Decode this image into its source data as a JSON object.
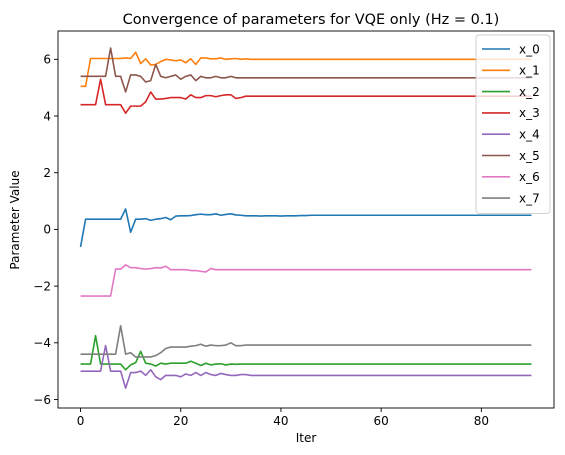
{
  "chart_data": {
    "type": "line",
    "title": "Convergence of parameters for VQE only (Hz = 0.1)",
    "xlabel": "Iter",
    "ylabel": "Parameter Value",
    "xlim": [
      -4.5,
      94.5
    ],
    "ylim": [
      -6.3,
      7.0
    ],
    "xticks": [
      0,
      20,
      40,
      60,
      80
    ],
    "yticks": [
      -6,
      -4,
      -2,
      0,
      2,
      4,
      6
    ],
    "grid": false,
    "legend_position": "top-right",
    "x": [
      0,
      1,
      2,
      3,
      4,
      5,
      6,
      7,
      8,
      9,
      10,
      11,
      12,
      13,
      14,
      15,
      16,
      17,
      18,
      19,
      20,
      21,
      22,
      23,
      24,
      25,
      26,
      27,
      28,
      29,
      30,
      31,
      32,
      33,
      34,
      35,
      36,
      37,
      38,
      39,
      40,
      41,
      42,
      43,
      44,
      45,
      46,
      47,
      48,
      49,
      50,
      51,
      52,
      53,
      54,
      55,
      56,
      57,
      58,
      59,
      60,
      61,
      62,
      63,
      64,
      65,
      66,
      67,
      68,
      69,
      70,
      71,
      72,
      73,
      74,
      75,
      76,
      77,
      78,
      79,
      80,
      81,
      82,
      83,
      84,
      85,
      86,
      87,
      88,
      89,
      90
    ],
    "series": [
      {
        "name": "x_0",
        "color": "#1f77b4",
        "values": [
          -0.62,
          0.36,
          0.36,
          0.36,
          0.36,
          0.36,
          0.36,
          0.36,
          0.36,
          0.72,
          -0.1,
          0.36,
          0.36,
          0.38,
          0.32,
          0.36,
          0.38,
          0.42,
          0.34,
          0.47,
          0.48,
          0.48,
          0.49,
          0.52,
          0.54,
          0.52,
          0.52,
          0.55,
          0.5,
          0.53,
          0.55,
          0.51,
          0.5,
          0.48,
          0.48,
          0.48,
          0.47,
          0.48,
          0.48,
          0.48,
          0.47,
          0.48,
          0.48,
          0.48,
          0.49,
          0.49,
          0.5,
          0.5,
          0.5,
          0.5,
          0.5,
          0.5,
          0.5,
          0.5,
          0.5,
          0.5,
          0.5,
          0.5,
          0.5,
          0.5,
          0.5,
          0.5,
          0.5,
          0.5,
          0.5,
          0.5,
          0.5,
          0.5,
          0.5,
          0.5,
          0.5,
          0.5,
          0.5,
          0.5,
          0.5,
          0.5,
          0.5,
          0.5,
          0.5,
          0.5,
          0.5,
          0.5,
          0.5,
          0.5,
          0.5,
          0.5,
          0.5,
          0.5,
          0.5,
          0.5,
          0.5
        ]
      },
      {
        "name": "x_1",
        "color": "#ff7f0e",
        "values": [
          5.05,
          5.05,
          6.03,
          6.03,
          6.03,
          6.03,
          6.03,
          6.03,
          6.03,
          6.05,
          6.03,
          6.25,
          5.85,
          6.02,
          5.8,
          5.82,
          5.92,
          6.0,
          5.98,
          5.95,
          5.98,
          5.88,
          6.02,
          5.82,
          6.05,
          6.05,
          6.02,
          6.02,
          6.05,
          6.0,
          6.02,
          6.03,
          6.0,
          6.02,
          6.0,
          6.0,
          6.0,
          6.0,
          6.0,
          6.0,
          6.0,
          6.0,
          6.0,
          6.0,
          6.0,
          6.0,
          6.0,
          6.0,
          6.0,
          6.0,
          6.0,
          6.0,
          6.0,
          6.0,
          6.0,
          6.0,
          6.0,
          6.0,
          6.0,
          6.0,
          6.0,
          6.0,
          6.0,
          6.0,
          6.0,
          6.0,
          6.0,
          6.0,
          6.0,
          6.0,
          6.0,
          6.0,
          6.0,
          6.0,
          6.0,
          6.0,
          6.0,
          6.0,
          6.0,
          6.0,
          6.0,
          6.0,
          6.0,
          6.0,
          6.0,
          6.0,
          6.0,
          6.0,
          6.0,
          6.0,
          6.0
        ]
      },
      {
        "name": "x_2",
        "color": "#2ca02c",
        "values": [
          -4.75,
          -4.75,
          -4.75,
          -3.75,
          -4.75,
          -4.75,
          -4.75,
          -4.75,
          -4.75,
          -4.95,
          -4.78,
          -4.7,
          -4.3,
          -4.72,
          -4.75,
          -4.82,
          -4.72,
          -4.75,
          -4.72,
          -4.72,
          -4.72,
          -4.72,
          -4.65,
          -4.72,
          -4.8,
          -4.72,
          -4.78,
          -4.75,
          -4.74,
          -4.78,
          -4.75,
          -4.76,
          -4.75,
          -4.75,
          -4.75,
          -4.75,
          -4.75,
          -4.75,
          -4.75,
          -4.75,
          -4.75,
          -4.75,
          -4.75,
          -4.75,
          -4.75,
          -4.75,
          -4.75,
          -4.75,
          -4.75,
          -4.75,
          -4.75,
          -4.75,
          -4.75,
          -4.75,
          -4.75,
          -4.75,
          -4.75,
          -4.75,
          -4.75,
          -4.75,
          -4.75,
          -4.75,
          -4.75,
          -4.75,
          -4.75,
          -4.75,
          -4.75,
          -4.75,
          -4.75,
          -4.75,
          -4.75,
          -4.75,
          -4.75,
          -4.75,
          -4.75,
          -4.75,
          -4.75,
          -4.75,
          -4.75,
          -4.75,
          -4.75,
          -4.75,
          -4.75,
          -4.75,
          -4.75,
          -4.75,
          -4.75,
          -4.75,
          -4.75,
          -4.75,
          -4.75
        ]
      },
      {
        "name": "x_3",
        "color": "#d62728",
        "values": [
          4.4,
          4.4,
          4.4,
          4.4,
          5.3,
          4.4,
          4.4,
          4.4,
          4.4,
          4.1,
          4.35,
          4.35,
          4.35,
          4.5,
          4.85,
          4.6,
          4.6,
          4.62,
          4.65,
          4.65,
          4.65,
          4.6,
          4.75,
          4.65,
          4.65,
          4.72,
          4.72,
          4.68,
          4.72,
          4.75,
          4.75,
          4.62,
          4.65,
          4.7,
          4.7,
          4.7,
          4.7,
          4.7,
          4.7,
          4.7,
          4.7,
          4.7,
          4.7,
          4.7,
          4.7,
          4.7,
          4.7,
          4.7,
          4.7,
          4.7,
          4.7,
          4.7,
          4.7,
          4.7,
          4.7,
          4.7,
          4.7,
          4.7,
          4.7,
          4.7,
          4.7,
          4.7,
          4.7,
          4.7,
          4.7,
          4.7,
          4.7,
          4.7,
          4.7,
          4.7,
          4.7,
          4.7,
          4.7,
          4.7,
          4.7,
          4.7,
          4.7,
          4.7,
          4.7,
          4.7,
          4.7,
          4.7,
          4.7,
          4.7,
          4.7,
          4.7,
          4.7,
          4.7,
          4.7,
          4.7,
          4.7
        ]
      },
      {
        "name": "x_4",
        "color": "#9467bd",
        "values": [
          -5.0,
          -5.0,
          -5.0,
          -5.0,
          -5.0,
          -4.1,
          -5.0,
          -5.0,
          -5.0,
          -5.6,
          -5.05,
          -5.05,
          -5.0,
          -5.15,
          -4.95,
          -5.2,
          -5.3,
          -5.15,
          -5.15,
          -5.15,
          -5.2,
          -5.1,
          -5.15,
          -5.05,
          -5.15,
          -5.05,
          -5.12,
          -5.15,
          -5.08,
          -5.12,
          -5.15,
          -5.15,
          -5.12,
          -5.12,
          -5.15,
          -5.15,
          -5.15,
          -5.15,
          -5.15,
          -5.15,
          -5.15,
          -5.15,
          -5.15,
          -5.15,
          -5.15,
          -5.15,
          -5.15,
          -5.15,
          -5.15,
          -5.15,
          -5.15,
          -5.15,
          -5.15,
          -5.15,
          -5.15,
          -5.15,
          -5.15,
          -5.15,
          -5.15,
          -5.15,
          -5.15,
          -5.15,
          -5.15,
          -5.15,
          -5.15,
          -5.15,
          -5.15,
          -5.15,
          -5.15,
          -5.15,
          -5.15,
          -5.15,
          -5.15,
          -5.15,
          -5.15,
          -5.15,
          -5.15,
          -5.15,
          -5.15,
          -5.15,
          -5.15,
          -5.15,
          -5.15,
          -5.15,
          -5.15,
          -5.15,
          -5.15,
          -5.15,
          -5.15,
          -5.15,
          -5.15
        ]
      },
      {
        "name": "x_5",
        "color": "#8c564b",
        "values": [
          5.4,
          5.4,
          5.4,
          5.4,
          5.4,
          5.4,
          6.4,
          5.4,
          5.4,
          4.85,
          5.45,
          5.45,
          5.4,
          5.2,
          5.25,
          5.82,
          5.4,
          5.35,
          5.4,
          5.45,
          5.3,
          5.4,
          5.45,
          5.25,
          5.4,
          5.35,
          5.35,
          5.4,
          5.35,
          5.35,
          5.4,
          5.35,
          5.35,
          5.35,
          5.35,
          5.35,
          5.35,
          5.35,
          5.35,
          5.35,
          5.35,
          5.35,
          5.35,
          5.35,
          5.35,
          5.35,
          5.35,
          5.35,
          5.35,
          5.35,
          5.35,
          5.35,
          5.35,
          5.35,
          5.35,
          5.35,
          5.35,
          5.35,
          5.35,
          5.35,
          5.35,
          5.35,
          5.35,
          5.35,
          5.35,
          5.35,
          5.35,
          5.35,
          5.35,
          5.35,
          5.35,
          5.35,
          5.35,
          5.35,
          5.35,
          5.35,
          5.35,
          5.35,
          5.35,
          5.35,
          5.35,
          5.35,
          5.35,
          5.35,
          5.35,
          5.35,
          5.35,
          5.35,
          5.35,
          5.35,
          5.35
        ]
      },
      {
        "name": "x_6",
        "color": "#e377c2",
        "values": [
          -2.35,
          -2.35,
          -2.35,
          -2.35,
          -2.35,
          -2.35,
          -2.35,
          -1.4,
          -1.4,
          -1.25,
          -1.35,
          -1.35,
          -1.38,
          -1.4,
          -1.38,
          -1.35,
          -1.36,
          -1.3,
          -1.42,
          -1.42,
          -1.42,
          -1.42,
          -1.45,
          -1.45,
          -1.48,
          -1.5,
          -1.38,
          -1.42,
          -1.42,
          -1.42,
          -1.42,
          -1.42,
          -1.42,
          -1.42,
          -1.42,
          -1.42,
          -1.42,
          -1.42,
          -1.42,
          -1.42,
          -1.42,
          -1.42,
          -1.42,
          -1.42,
          -1.42,
          -1.42,
          -1.42,
          -1.42,
          -1.42,
          -1.42,
          -1.42,
          -1.42,
          -1.42,
          -1.42,
          -1.42,
          -1.42,
          -1.42,
          -1.42,
          -1.42,
          -1.42,
          -1.42,
          -1.42,
          -1.42,
          -1.42,
          -1.42,
          -1.42,
          -1.42,
          -1.42,
          -1.42,
          -1.42,
          -1.42,
          -1.42,
          -1.42,
          -1.42,
          -1.42,
          -1.42,
          -1.42,
          -1.42,
          -1.42,
          -1.42,
          -1.42,
          -1.42,
          -1.42,
          -1.42,
          -1.42,
          -1.42,
          -1.42,
          -1.42,
          -1.42,
          -1.42,
          -1.42
        ]
      },
      {
        "name": "x_7",
        "color": "#7f7f7f",
        "values": [
          -4.4,
          -4.4,
          -4.4,
          -4.4,
          -4.4,
          -4.4,
          -4.4,
          -4.4,
          -3.4,
          -4.4,
          -4.35,
          -4.5,
          -4.5,
          -4.5,
          -4.5,
          -4.45,
          -4.35,
          -4.2,
          -4.15,
          -4.15,
          -4.15,
          -4.15,
          -4.12,
          -4.1,
          -4.05,
          -4.12,
          -4.08,
          -4.1,
          -4.1,
          -4.08,
          -4.0,
          -4.1,
          -4.1,
          -4.08,
          -4.08,
          -4.08,
          -4.08,
          -4.08,
          -4.08,
          -4.08,
          -4.08,
          -4.08,
          -4.08,
          -4.08,
          -4.08,
          -4.08,
          -4.08,
          -4.08,
          -4.08,
          -4.08,
          -4.08,
          -4.08,
          -4.08,
          -4.08,
          -4.08,
          -4.08,
          -4.08,
          -4.08,
          -4.08,
          -4.08,
          -4.08,
          -4.08,
          -4.08,
          -4.08,
          -4.08,
          -4.08,
          -4.08,
          -4.08,
          -4.08,
          -4.08,
          -4.08,
          -4.08,
          -4.08,
          -4.08,
          -4.08,
          -4.08,
          -4.08,
          -4.08,
          -4.08,
          -4.08,
          -4.08,
          -4.08,
          -4.08,
          -4.08,
          -4.08,
          -4.08,
          -4.08,
          -4.08,
          -4.08,
          -4.08,
          -4.08
        ]
      }
    ]
  }
}
